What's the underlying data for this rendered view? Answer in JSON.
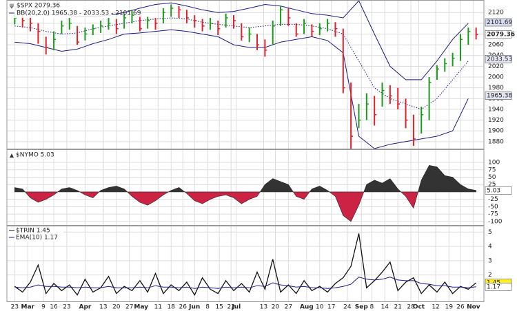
{
  "chart_data": [
    {
      "type": "ohlc",
      "title": "$SPX 2079.36",
      "x": [
        0,
        3,
        6,
        9,
        12,
        15,
        18,
        21,
        24,
        27,
        30,
        33,
        36,
        39,
        42,
        45,
        48,
        51,
        54,
        57,
        60,
        63,
        66,
        69,
        72,
        75,
        78,
        81,
        84,
        87,
        90,
        93,
        96,
        99,
        102,
        105,
        108,
        111,
        114,
        117,
        120,
        123,
        126,
        129,
        132,
        135,
        138,
        141,
        144,
        147,
        150,
        153,
        156,
        159,
        162,
        165,
        168,
        171,
        174,
        177
      ],
      "high": [
        2118,
        2115,
        2112,
        2100,
        2075,
        2085,
        2105,
        2110,
        2095,
        2092,
        2098,
        2105,
        2110,
        2108,
        2118,
        2125,
        2112,
        2112,
        2110,
        2128,
        2135,
        2132,
        2125,
        2115,
        2108,
        2110,
        2105,
        2118,
        2115,
        2100,
        2092,
        2080,
        2070,
        2105,
        2132,
        2128,
        2100,
        2108,
        2098,
        2100,
        2108,
        2102,
        2090,
        1990,
        1950,
        1970,
        1965,
        1990,
        1985,
        1980,
        1960,
        1930,
        1945,
        2000,
        2022,
        2035,
        2045,
        2080,
        2092,
        2092
      ],
      "low": [
        2098,
        2092,
        2085,
        2062,
        2042,
        2050,
        2080,
        2088,
        2060,
        2068,
        2078,
        2082,
        2088,
        2080,
        2090,
        2100,
        2085,
        2090,
        2088,
        2100,
        2112,
        2110,
        2100,
        2092,
        2085,
        2088,
        2078,
        2092,
        2090,
        2068,
        2065,
        2050,
        2038,
        2060,
        2095,
        2095,
        2075,
        2080,
        2075,
        2078,
        2085,
        2075,
        1970,
        1867,
        1905,
        1920,
        1910,
        1945,
        1950,
        1940,
        1905,
        1872,
        1895,
        1920,
        1995,
        2010,
        2020,
        2030,
        2060,
        2070
      ],
      "close": [
        2110,
        2105,
        2100,
        2085,
        2055,
        2070,
        2095,
        2100,
        2065,
        2080,
        2090,
        2095,
        2100,
        2090,
        2110,
        2115,
        2090,
        2105,
        2100,
        2120,
        2128,
        2125,
        2110,
        2105,
        2095,
        2100,
        2090,
        2110,
        2105,
        2075,
        2080,
        2060,
        2050,
        2095,
        2125,
        2110,
        2080,
        2100,
        2085,
        2090,
        2100,
        2090,
        1980,
        1890,
        1920,
        1950,
        1930,
        1975,
        1965,
        1950,
        1920,
        1885,
        1930,
        1990,
        2015,
        2025,
        2035,
        2070,
        2085,
        2079
      ],
      "up_color": "#1a9c1a",
      "down_color": "#e0202a",
      "bands": {
        "name": "BB(20,2.0) 1965.38 - 2033.53 - 2101.69",
        "color": "#1a1a80",
        "x": [
          0,
          6,
          12,
          18,
          24,
          30,
          36,
          42,
          48,
          54,
          60,
          66,
          72,
          78,
          84,
          90,
          96,
          102,
          108,
          114,
          120,
          126,
          132,
          138,
          144,
          150,
          156,
          162,
          168,
          174
        ],
        "upper": [
          2125,
          2118,
          2115,
          2118,
          2112,
          2112,
          2115,
          2120,
          2128,
          2135,
          2138,
          2132,
          2125,
          2120,
          2122,
          2128,
          2135,
          2132,
          2125,
          2118,
          2115,
          2110,
          2142,
          2080,
          2020,
          1995,
          1995,
          2030,
          2070,
          2100
        ],
        "middle": [
          2095,
          2092,
          2085,
          2080,
          2082,
          2090,
          2095,
          2100,
          2105,
          2108,
          2110,
          2108,
          2102,
          2098,
          2095,
          2092,
          2095,
          2098,
          2098,
          2095,
          2090,
          2080,
          2030,
          1980,
          1960,
          1950,
          1940,
          1960,
          1995,
          2030
        ],
        "lower": [
          2065,
          2062,
          2055,
          2048,
          2052,
          2062,
          2070,
          2080,
          2082,
          2085,
          2088,
          2085,
          2080,
          2075,
          2060,
          2055,
          2055,
          2065,
          2070,
          2075,
          2068,
          2045,
          1890,
          1867,
          1875,
          1880,
          1885,
          1890,
          1900,
          1960
        ]
      },
      "last_values": [
        2101.69,
        2079.36,
        2033.53,
        1965.38
      ],
      "xlim": [
        -3,
        180
      ],
      "ylim": [
        1867,
        2142
      ],
      "yticks": [
        1880,
        1900,
        1920,
        1940,
        1960,
        1980,
        2000,
        2020,
        2040,
        2060,
        2080,
        2100,
        2120
      ],
      "grid": true
    },
    {
      "type": "area",
      "title": "$NYMO 5.03",
      "x": [
        0,
        3,
        6,
        9,
        12,
        15,
        18,
        21,
        24,
        27,
        30,
        33,
        36,
        39,
        42,
        45,
        48,
        51,
        54,
        57,
        60,
        63,
        66,
        69,
        72,
        75,
        78,
        81,
        84,
        87,
        90,
        93,
        96,
        99,
        102,
        105,
        108,
        111,
        114,
        117,
        120,
        123,
        126,
        129,
        132,
        135,
        138,
        141,
        144,
        147,
        150,
        153,
        156,
        159,
        162,
        165,
        168,
        171,
        174,
        177
      ],
      "values": [
        15,
        10,
        -20,
        -35,
        -25,
        -10,
        10,
        15,
        5,
        -10,
        -20,
        5,
        15,
        20,
        10,
        -15,
        -35,
        -45,
        -30,
        -10,
        5,
        15,
        -5,
        -30,
        -40,
        -25,
        -15,
        -10,
        -20,
        -40,
        -25,
        -15,
        25,
        45,
        35,
        25,
        -15,
        -25,
        10,
        20,
        5,
        -15,
        -80,
        -100,
        -45,
        25,
        40,
        30,
        45,
        10,
        -15,
        -55,
        40,
        90,
        85,
        55,
        50,
        25,
        10,
        5
      ],
      "color_positive": "#333333",
      "color_negative": "#cc2244",
      "last_values": [
        5.03
      ],
      "xlim": [
        -3,
        180
      ],
      "ylim": [
        -112,
        142
      ],
      "yticks": [
        -100,
        -75,
        -50,
        -25,
        25,
        50,
        75,
        100
      ],
      "grid": true
    },
    {
      "type": "line",
      "x": [
        0,
        3,
        6,
        9,
        12,
        15,
        18,
        21,
        24,
        27,
        30,
        33,
        36,
        39,
        42,
        45,
        48,
        51,
        54,
        57,
        60,
        63,
        66,
        69,
        72,
        75,
        78,
        81,
        84,
        87,
        90,
        93,
        96,
        99,
        102,
        105,
        108,
        111,
        114,
        117,
        120,
        123,
        126,
        129,
        132,
        135,
        138,
        141,
        144,
        147,
        150,
        153,
        156,
        159,
        162,
        165,
        168,
        171,
        174,
        177
      ],
      "series": [
        {
          "name": "$TRIN 1.45",
          "color": "#111111",
          "values": [
            1.2,
            0.8,
            1.5,
            2.7,
            0.7,
            1.4,
            0.9,
            1.3,
            0.6,
            1.7,
            0.8,
            1.1,
            1.9,
            0.7,
            1.2,
            0.9,
            1.6,
            0.8,
            2.1,
            0.7,
            1.3,
            0.9,
            1.5,
            0.6,
            1.8,
            1.0,
            0.7,
            1.6,
            0.9,
            1.4,
            0.8,
            2.2,
            1.0,
            3.1,
            0.8,
            1.3,
            0.7,
            1.6,
            0.9,
            1.2,
            0.8,
            1.4,
            1.8,
            2.6,
            4.9,
            1.1,
            1.6,
            2.2,
            2.9,
            0.9,
            1.5,
            1.8,
            0.7,
            1.3,
            0.8,
            1.5,
            0.7,
            1.2,
            1.0,
            1.45
          ]
        },
        {
          "name": "EMA(10) 1.17",
          "color": "#1a1a80",
          "values": [
            1.15,
            1.1,
            1.15,
            1.3,
            1.2,
            1.2,
            1.15,
            1.15,
            1.1,
            1.15,
            1.1,
            1.1,
            1.2,
            1.1,
            1.1,
            1.1,
            1.15,
            1.1,
            1.25,
            1.15,
            1.15,
            1.1,
            1.15,
            1.05,
            1.15,
            1.1,
            1.05,
            1.15,
            1.1,
            1.15,
            1.1,
            1.25,
            1.2,
            1.45,
            1.3,
            1.25,
            1.15,
            1.2,
            1.1,
            1.1,
            1.05,
            1.1,
            1.2,
            1.35,
            1.85,
            1.7,
            1.65,
            1.7,
            1.85,
            1.65,
            1.6,
            1.6,
            1.4,
            1.35,
            1.25,
            1.25,
            1.15,
            1.15,
            1.1,
            1.17
          ]
        }
      ],
      "last_values": [
        1.45,
        1.17
      ],
      "xlim": [
        -3,
        180
      ],
      "ylim": [
        0.15,
        5.4
      ],
      "yticks": [
        2,
        3,
        4,
        5
      ],
      "grid": true,
      "xticks": [
        {
          "value": 0,
          "label": "23"
        },
        {
          "value": 5,
          "label": "Mar"
        },
        {
          "value": 11,
          "label": "9"
        },
        {
          "value": 15,
          "label": "16"
        },
        {
          "value": 20,
          "label": "23"
        },
        {
          "value": 27,
          "label": "Apr"
        },
        {
          "value": 34,
          "label": "13"
        },
        {
          "value": 39,
          "label": "20"
        },
        {
          "value": 44,
          "label": "27"
        },
        {
          "value": 48.5,
          "label": "May"
        },
        {
          "value": 55,
          "label": "11"
        },
        {
          "value": 60,
          "label": "18"
        },
        {
          "value": 64.5,
          "label": "26"
        },
        {
          "value": 69,
          "label": "Jun"
        },
        {
          "value": 74,
          "label": "8"
        },
        {
          "value": 78.5,
          "label": "15"
        },
        {
          "value": 83,
          "label": "22"
        },
        {
          "value": 85,
          "label": "Jul"
        },
        {
          "value": 95.5,
          "label": "13"
        },
        {
          "value": 100,
          "label": "20"
        },
        {
          "value": 105,
          "label": "27"
        },
        {
          "value": 112,
          "label": "Aug"
        },
        {
          "value": 117,
          "label": "10"
        },
        {
          "value": 121.5,
          "label": "17"
        },
        {
          "value": 127.6,
          "label": "24"
        },
        {
          "value": 133,
          "label": "Sep"
        },
        {
          "value": 137,
          "label": "8"
        },
        {
          "value": 142,
          "label": "14"
        },
        {
          "value": 147,
          "label": "21"
        },
        {
          "value": 152,
          "label": "28"
        },
        {
          "value": 155,
          "label": "Oct"
        },
        {
          "value": 161.5,
          "label": "12"
        },
        {
          "value": 166.6,
          "label": "19"
        },
        {
          "value": 171,
          "label": "26"
        },
        {
          "value": 176,
          "label": "Nov"
        }
      ]
    }
  ]
}
